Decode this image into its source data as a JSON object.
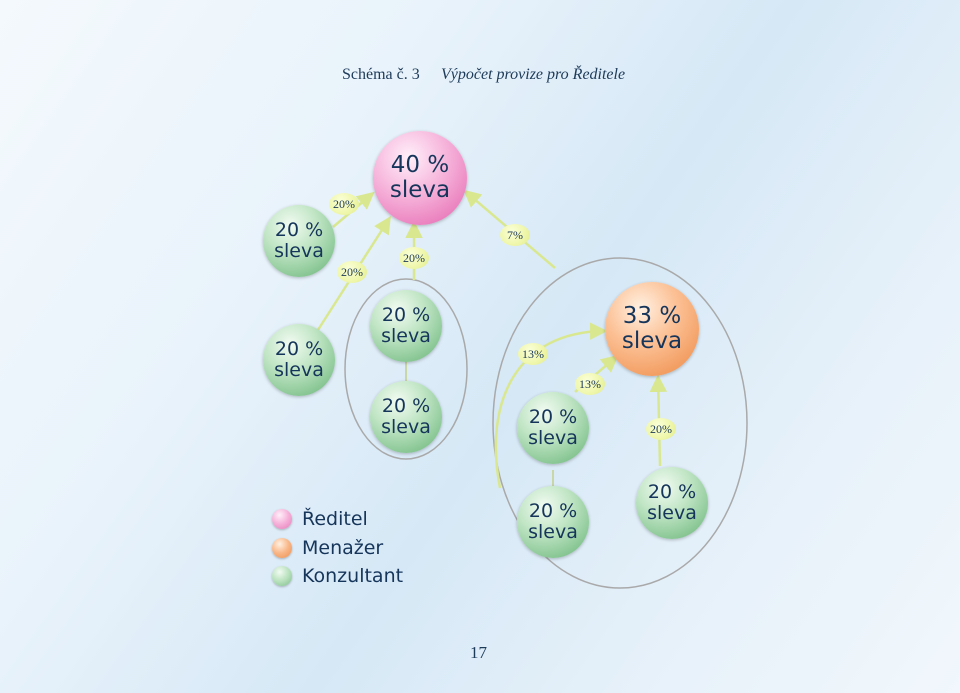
{
  "title": {
    "number": "Schéma č. 3",
    "text": "Výpočet provize pro Ředitele"
  },
  "node_line1": {
    "director": "40 %",
    "manager": "33 %",
    "c_top_left": "20 %",
    "c_left": "20 %",
    "c_group1_top": "20 %",
    "c_group1_bottom": "20 %",
    "c_group2_mid": "20 %",
    "c_group2_bottom": "20 %",
    "c_group2_right": "20 %"
  },
  "node_line2": "sleva",
  "percentages": {
    "top_left_edge": "20%",
    "left_edge": "20%",
    "group1_edge": "20%",
    "group2_edge": "7%",
    "c_group2_mid_edge": "13%",
    "c_group2_bottom_edge": "13%",
    "c_group2_right_edge": "20%"
  },
  "legend": [
    {
      "label": "Ředitel",
      "color": "#ef90c7"
    },
    {
      "label": "Menažer",
      "color": "#f5a46c"
    },
    {
      "label": "Konzultant",
      "color": "#9fd3a8"
    }
  ],
  "page_number": "17",
  "colors": {
    "director": "#ef90c7",
    "manager": "#f5a46c",
    "consultant": "#9fd3a8",
    "percentage_badge": "#eef6a8",
    "arrow": "#d9e88f",
    "group_outline": "#a9a9a9",
    "text": "#16355a"
  }
}
